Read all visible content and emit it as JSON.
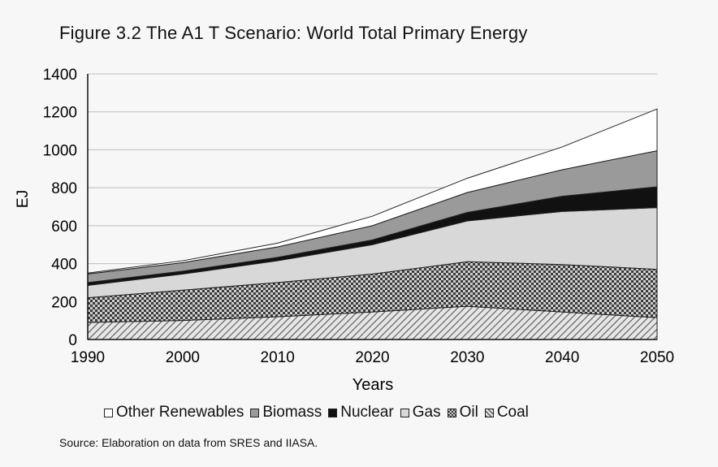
{
  "title": "Figure 3.2 The A1 T Scenario: World Total Primary Energy",
  "source": "Source: Elaboration on data from SRES and IIASA.",
  "colors": {
    "other_renewables": "#ffffff",
    "biomass": "#9a9a9a",
    "nuclear": "#111111",
    "gas": "#d8d8d8",
    "oil": "#7a7a7a",
    "coal": "#bdbdbd"
  },
  "chart_data": {
    "type": "area",
    "stacked": true,
    "title": "Figure 3.2 The A1 T Scenario: World Total Primary Energy",
    "xlabel": "Years",
    "ylabel": "EJ",
    "x": [
      1990,
      2000,
      2010,
      2020,
      2030,
      2040,
      2050
    ],
    "xticks": [
      "1990",
      "2000",
      "2010",
      "2020",
      "2030",
      "2040",
      "2050"
    ],
    "yticks": [
      "0",
      "200",
      "400",
      "600",
      "800",
      "1000",
      "1200",
      "1400"
    ],
    "ylim": [
      0,
      1400
    ],
    "grid": "horizontal",
    "legend_position": "bottom",
    "series": [
      {
        "name": "Coal",
        "key": "coal",
        "pattern": "hatch",
        "values": [
          90,
          100,
          120,
          145,
          175,
          145,
          115
        ]
      },
      {
        "name": "Oil",
        "key": "oil",
        "pattern": "checker",
        "values": [
          130,
          160,
          180,
          200,
          235,
          250,
          255
        ]
      },
      {
        "name": "Gas",
        "key": "gas",
        "pattern": "solid",
        "values": [
          65,
          85,
          115,
          155,
          215,
          280,
          325
        ]
      },
      {
        "name": "Nuclear",
        "key": "nuclear",
        "pattern": "solid",
        "values": [
          15,
          15,
          18,
          25,
          45,
          80,
          110
        ]
      },
      {
        "name": "Biomass",
        "key": "biomass",
        "pattern": "solid",
        "values": [
          45,
          45,
          55,
          75,
          105,
          140,
          190
        ]
      },
      {
        "name": "Other Renewables",
        "key": "other_renewables",
        "pattern": "solid",
        "values": [
          5,
          10,
          20,
          50,
          75,
          120,
          220
        ]
      }
    ],
    "legend": [
      "Other Renewables",
      "Biomass",
      "Nuclear",
      "Gas",
      "Oil",
      "Coal"
    ]
  }
}
